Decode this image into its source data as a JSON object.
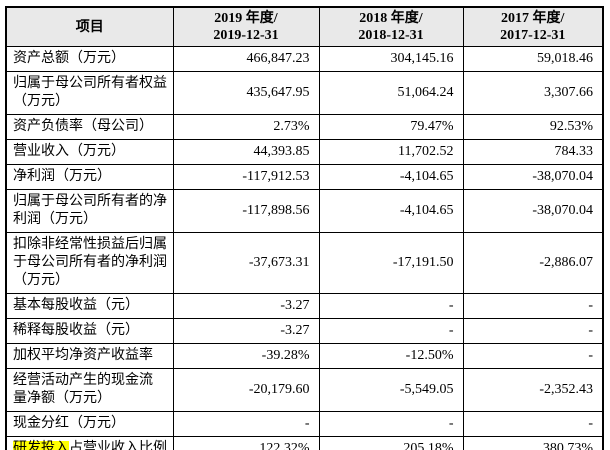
{
  "table": {
    "header": {
      "item": "项目",
      "y2019": "2019 年度/\n2019-12-31",
      "y2018": "2018 年度/\n2018-12-31",
      "y2017": "2017 年度/\n2017-12-31"
    },
    "rows": [
      {
        "label": "资产总额（万元）",
        "v2019": "466,847.23",
        "v2018": "304,145.16",
        "v2017": "59,018.46"
      },
      {
        "label": "归属于母公司所有者权益\n（万元）",
        "v2019": "435,647.95",
        "v2018": "51,064.24",
        "v2017": "3,307.66"
      },
      {
        "label": "资产负债率（母公司）",
        "v2019": "2.73%",
        "v2018": "79.47%",
        "v2017": "92.53%"
      },
      {
        "label": "营业收入（万元）",
        "v2019": "44,393.85",
        "v2018": "11,702.52",
        "v2017": "784.33"
      },
      {
        "label": "净利润（万元）",
        "v2019": "-117,912.53",
        "v2018": "-4,104.65",
        "v2017": "-38,070.04"
      },
      {
        "label": "归属于母公司所有者的净\n利润（万元）",
        "v2019": "-117,898.56",
        "v2018": "-4,104.65",
        "v2017": "-38,070.04"
      },
      {
        "label": "扣除非经常性损益后归属\n于母公司所有者的净利润\n（万元）",
        "v2019": "-37,673.31",
        "v2018": "-17,191.50",
        "v2017": "-2,886.07"
      },
      {
        "label": "基本每股收益（元）",
        "v2019": "-3.27",
        "v2018": "-",
        "v2017": "-"
      },
      {
        "label": "稀释每股收益（元）",
        "v2019": "-3.27",
        "v2018": "-",
        "v2017": "-"
      },
      {
        "label": "加权平均净资产收益率",
        "v2019": "-39.28%",
        "v2018": "-12.50%",
        "v2017": "-"
      },
      {
        "label": "经营活动产生的现金流\n量净额（万元）",
        "v2019": "-20,179.60",
        "v2018": "-5,549.05",
        "v2017": "-2,352.43"
      },
      {
        "label": "现金分红（万元）",
        "v2019": "-",
        "v2018": "-",
        "v2017": "-"
      }
    ],
    "rd_row": {
      "highlight": "研发投入",
      "rest": "占营业收入比例",
      "v2019": "122.32%",
      "v2018": "205.18%",
      "v2017": "380.73%"
    },
    "colors": {
      "header_bg": "#e9e9e9",
      "highlight": "#ffff00",
      "border": "#000000"
    }
  }
}
